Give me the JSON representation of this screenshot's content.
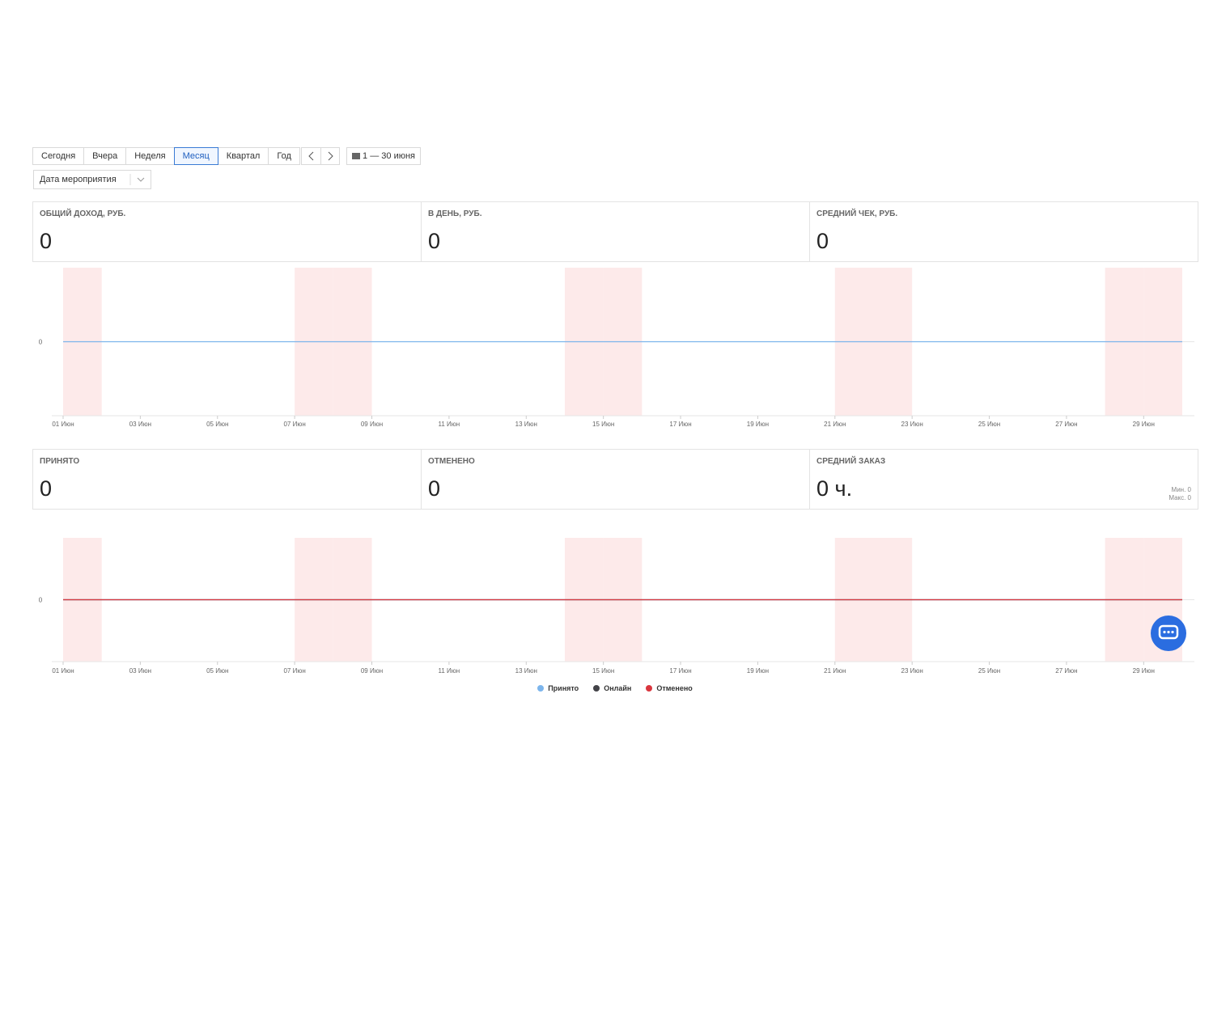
{
  "toolbar": {
    "periods": [
      "Сегодня",
      "Вчера",
      "Неделя",
      "Месяц",
      "Квартал",
      "Год"
    ],
    "active_period": 3,
    "date_range": "1 — 30 июня",
    "date_field": "Дата мероприятия"
  },
  "stats_top": [
    {
      "label": "ОБЩИЙ ДОХОД, РУБ.",
      "value": 0
    },
    {
      "label": "В ДЕНЬ, РУБ.",
      "value": 0
    },
    {
      "label": "СРЕДНИЙ ЧЕК, РУБ.",
      "value": 0
    }
  ],
  "stats_bottom": [
    {
      "label": "ПРИНЯТО",
      "value": 0
    },
    {
      "label": "ОТМЕНЕНО",
      "value": 0
    },
    {
      "label": "СРЕДНИЙ ЗАКАЗ",
      "value": "0 ч.",
      "min": "Мин. 0",
      "max": "Макс. 0"
    }
  ],
  "charts": [
    {
      "type": "line",
      "categories": [
        "01 Июн",
        null,
        "03 Июн",
        null,
        "05 Июн",
        null,
        "07 Июн",
        null,
        "09 Июн",
        null,
        "11 Июн",
        null,
        "13 Июн",
        null,
        "15 Июн",
        null,
        "17 Июн",
        null,
        "19 Июн",
        null,
        "21 Июн",
        null,
        "23 Июн",
        null,
        "25 Июн",
        null,
        "27 Июн",
        null,
        "29 Июн",
        null
      ],
      "shaded": [
        0,
        6,
        7,
        13,
        14,
        20,
        21,
        27,
        28
      ],
      "shade_color": "#fdeaea",
      "series": [
        {
          "color": "#7cb5ec",
          "values": [
            0,
            0,
            0,
            0,
            0,
            0,
            0,
            0,
            0,
            0,
            0,
            0,
            0,
            0,
            0,
            0,
            0,
            0,
            0,
            0,
            0,
            0,
            0,
            0,
            0,
            0,
            0,
            0,
            0,
            0
          ]
        }
      ],
      "ylim": [
        -1,
        1
      ],
      "yticks": [
        0
      ]
    },
    {
      "type": "line",
      "categories": [
        "01 Июн",
        null,
        "03 Июн",
        null,
        "05 Июн",
        null,
        "07 Июн",
        null,
        "09 Июн",
        null,
        "11 Июн",
        null,
        "13 Июн",
        null,
        "15 Июн",
        null,
        "17 Июн",
        null,
        "19 Июн",
        null,
        "21 Июн",
        null,
        "23 Июн",
        null,
        "25 Июн",
        null,
        "27 Июн",
        null,
        "29 Июн",
        null
      ],
      "shaded": [
        0,
        6,
        7,
        13,
        14,
        20,
        21,
        27,
        28
      ],
      "shade_color": "#fdeaea",
      "series": [
        {
          "name": "Принято",
          "color": "#7cb5ec",
          "values": [
            0,
            0,
            0,
            0,
            0,
            0,
            0,
            0,
            0,
            0,
            0,
            0,
            0,
            0,
            0,
            0,
            0,
            0,
            0,
            0,
            0,
            0,
            0,
            0,
            0,
            0,
            0,
            0,
            0,
            0
          ]
        },
        {
          "name": "Онлайн",
          "color": "#434348",
          "values": [
            0,
            0,
            0,
            0,
            0,
            0,
            0,
            0,
            0,
            0,
            0,
            0,
            0,
            0,
            0,
            0,
            0,
            0,
            0,
            0,
            0,
            0,
            0,
            0,
            0,
            0,
            0,
            0,
            0,
            0
          ]
        },
        {
          "name": "Отменено",
          "color": "#d9363e",
          "values": [
            0,
            0,
            0,
            0,
            0,
            0,
            0,
            0,
            0,
            0,
            0,
            0,
            0,
            0,
            0,
            0,
            0,
            0,
            0,
            0,
            0,
            0,
            0,
            0,
            0,
            0,
            0,
            0,
            0,
            0
          ]
        }
      ],
      "ylim": [
        -1,
        1
      ],
      "yticks": [
        0
      ]
    }
  ]
}
